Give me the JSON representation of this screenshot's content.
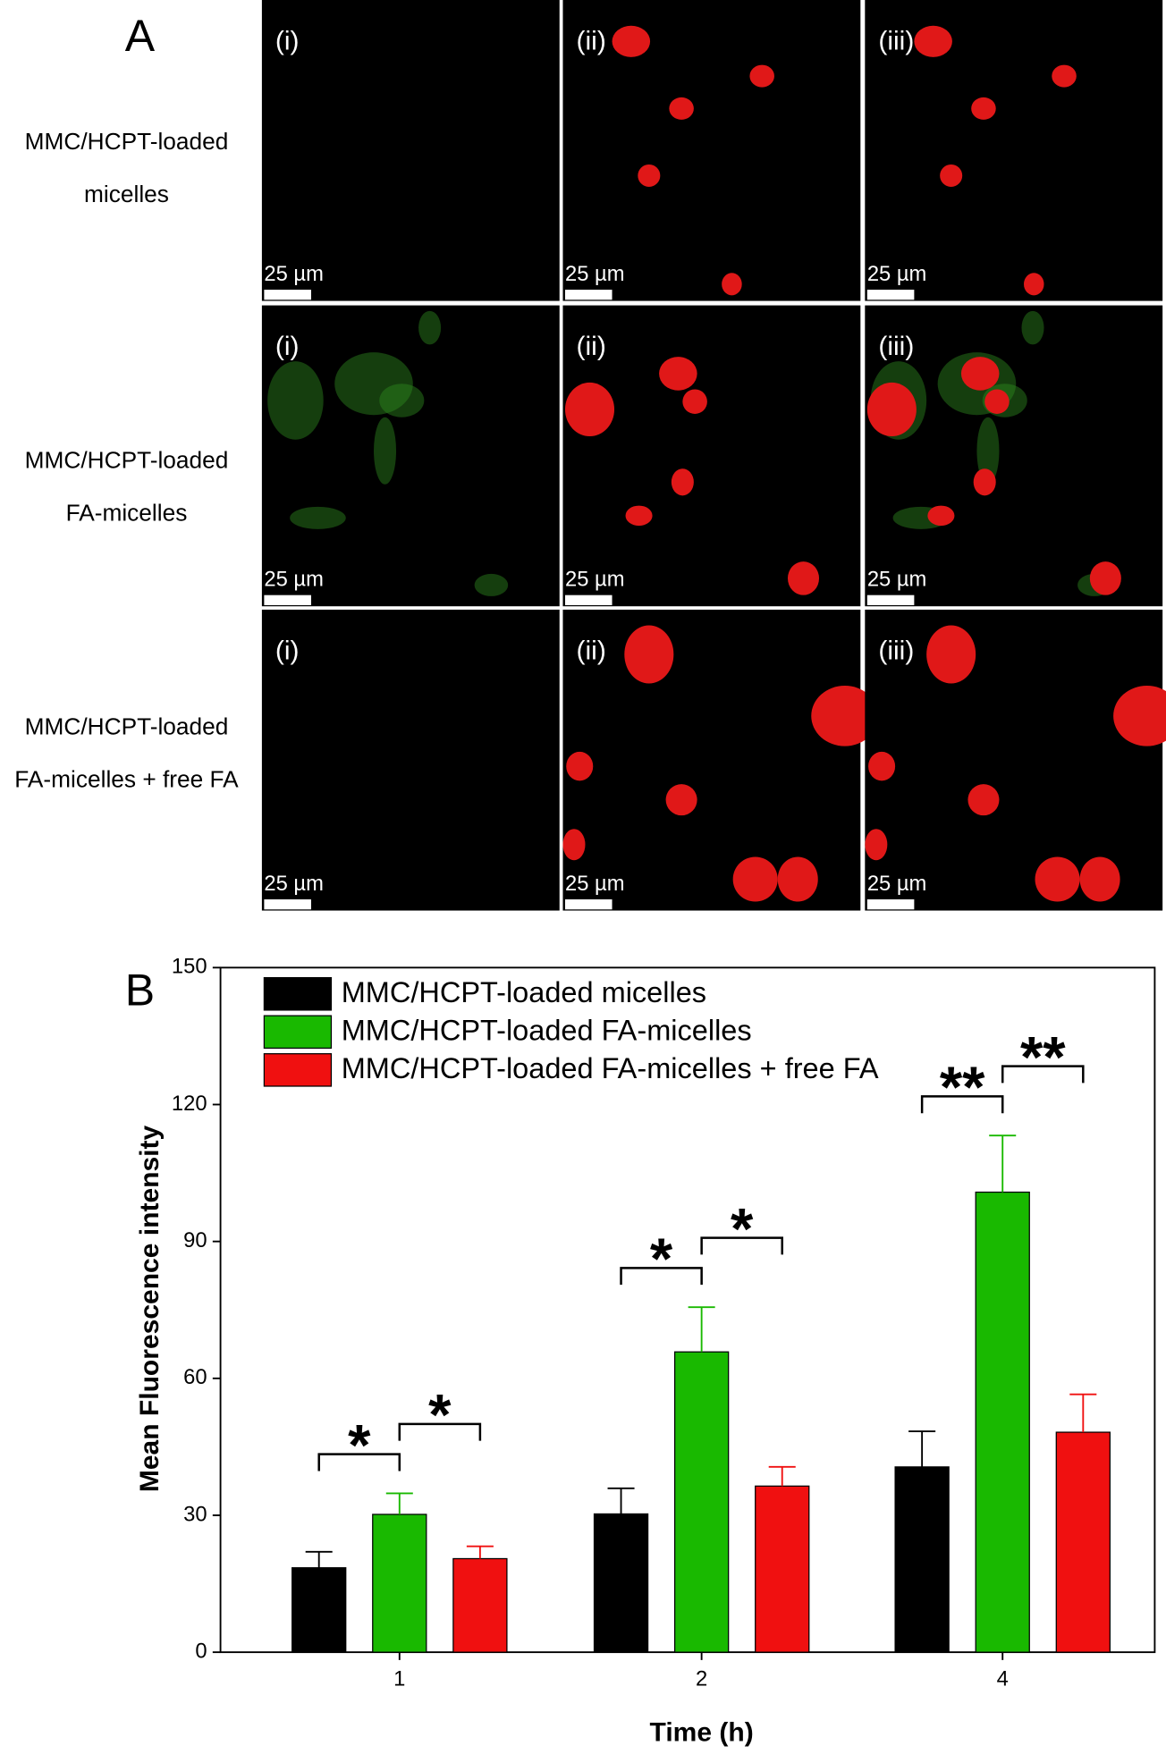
{
  "panel_a": {
    "label": "A",
    "rows": [
      {
        "lines": [
          "MMC/HCPT-loaded",
          "micelles"
        ]
      },
      {
        "lines": [
          "MMC/HCPT-loaded",
          "FA-micelles"
        ]
      },
      {
        "lines": [
          "MMC/HCPT-loaded",
          "FA-micelles + free FA"
        ]
      }
    ],
    "columns": [
      "(i)",
      "(ii)",
      "(iii)"
    ],
    "scale_bar": "25 µm"
  },
  "chart_data": {
    "type": "bar",
    "label": "B",
    "x_label": "Time (h)",
    "y_label": "Mean Fluorescence  intensity",
    "categories": [
      "1",
      "2",
      "4"
    ],
    "series": [
      {
        "name": "MMC/HCPT-loaded micelles",
        "color": "#000000",
        "values": [
          18.5,
          30.3,
          40.6
        ],
        "errors": [
          3.5,
          5.6,
          7.8
        ]
      },
      {
        "name": "MMC/HCPT-loaded FA-micelles",
        "color": "#19b900",
        "values": [
          30.2,
          65.8,
          100.8
        ],
        "errors": [
          4.6,
          9.8,
          12.4
        ]
      },
      {
        "name": "MMC/HCPT-loaded FA-micelles + free FA",
        "color": "#f01010",
        "values": [
          20.5,
          36.4,
          48.2
        ],
        "errors": [
          2.7,
          4.2,
          8.3
        ]
      }
    ],
    "annotations": [
      "*",
      "*",
      "*",
      "*",
      "**",
      "**"
    ],
    "ylim": [
      0,
      150
    ],
    "yticks": [
      0,
      30,
      60,
      90,
      120,
      150
    ],
    "legend": "upper-left"
  }
}
